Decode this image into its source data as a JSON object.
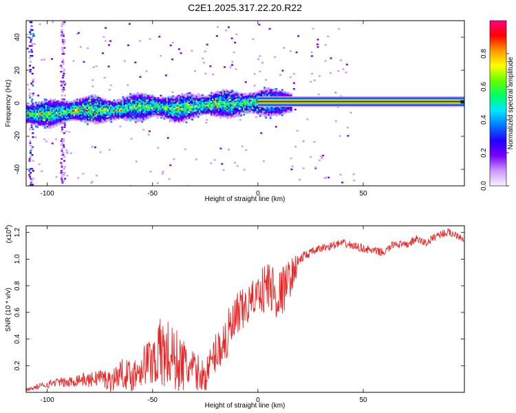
{
  "title": "C2E1.2025.317.22.20.R22",
  "chart_data": [
    {
      "type": "heatmap",
      "title": "C2E1.2025.317.22.20.R22",
      "xlabel": "Height of straight line (km)",
      "ylabel": "Frequency (Hz)",
      "xlim": [
        -110,
        98
      ],
      "ylim": [
        -50,
        50
      ],
      "x_ticks": [
        -100,
        -50,
        0,
        50
      ],
      "y_ticks": [
        -40,
        -20,
        0,
        20,
        40
      ],
      "colorbar": {
        "label": "Normalized spectral amplitude",
        "range": [
          0,
          1
        ],
        "ticks": [
          "0.0",
          "0.2",
          "0.4",
          "0.6",
          "0.8"
        ],
        "colors": [
          "#f7f2ff",
          "#cc99ff",
          "#7a00ff",
          "#2200ff",
          "#0077ff",
          "#00e5ff",
          "#00ff66",
          "#66ff00",
          "#ffff00",
          "#ff9900",
          "#ff0000",
          "#ff0088"
        ]
      },
      "ridge": {
        "x": [
          -110,
          -100,
          -95,
          -90,
          -80,
          -70,
          -60,
          -50,
          -40,
          -30,
          -20,
          -10,
          0,
          10,
          15,
          50,
          98
        ],
        "frequency": [
          -6,
          -6,
          -5,
          -4,
          -3,
          -4,
          -2,
          -1,
          -3,
          -1,
          0,
          0,
          1,
          1,
          1,
          1,
          1
        ]
      }
    },
    {
      "type": "line",
      "xlabel": "Height of straight line (km)",
      "ylabel": "SNR (10 * v/v)",
      "y_multiplier": "(x10",
      "y_multiplier_exponent": "4",
      "y_multiplier_close": ")",
      "xlim": [
        -110,
        98
      ],
      "ylim": [
        0,
        1.25
      ],
      "x_ticks": [
        -100,
        -50,
        0,
        50
      ],
      "y_ticks": [
        0.2,
        0.4,
        0.6,
        0.8,
        1.0,
        1.2
      ],
      "y_tick_labels": [
        "0.2",
        "0.4",
        "0.6",
        "0.8",
        "1.0",
        "1.2"
      ],
      "series": [
        {
          "name": "SNR",
          "color": "#ee2020",
          "x": [
            -110,
            -105,
            -100,
            -95,
            -90,
            -85,
            -80,
            -75,
            -70,
            -65,
            -60,
            -55,
            -50,
            -45,
            -40,
            -35,
            -30,
            -25,
            -20,
            -15,
            -10,
            -5,
            0,
            5,
            10,
            15,
            20,
            25,
            30,
            35,
            40,
            45,
            50,
            55,
            60,
            65,
            70,
            75,
            80,
            85,
            90,
            95,
            98
          ],
          "values": [
            0.02,
            0.04,
            0.06,
            0.08,
            0.07,
            0.1,
            0.09,
            0.12,
            0.08,
            0.15,
            0.12,
            0.2,
            0.25,
            0.3,
            0.25,
            0.2,
            0.15,
            0.12,
            0.3,
            0.4,
            0.55,
            0.65,
            0.75,
            0.8,
            0.72,
            0.85,
            1.0,
            1.05,
            1.08,
            1.1,
            1.12,
            1.1,
            1.08,
            1.06,
            1.05,
            1.12,
            1.1,
            1.15,
            1.12,
            1.18,
            1.2,
            1.18,
            1.15
          ],
          "amplitude": [
            0.01,
            0.02,
            0.03,
            0.03,
            0.04,
            0.05,
            0.05,
            0.07,
            0.08,
            0.1,
            0.12,
            0.15,
            0.2,
            0.3,
            0.25,
            0.2,
            0.15,
            0.12,
            0.15,
            0.2,
            0.2,
            0.15,
            0.12,
            0.25,
            0.2,
            0.15,
            0.05,
            0.03,
            0.03,
            0.03,
            0.03,
            0.03,
            0.03,
            0.03,
            0.03,
            0.03,
            0.03,
            0.03,
            0.03,
            0.03,
            0.03,
            0.03,
            0.03
          ]
        }
      ]
    }
  ]
}
